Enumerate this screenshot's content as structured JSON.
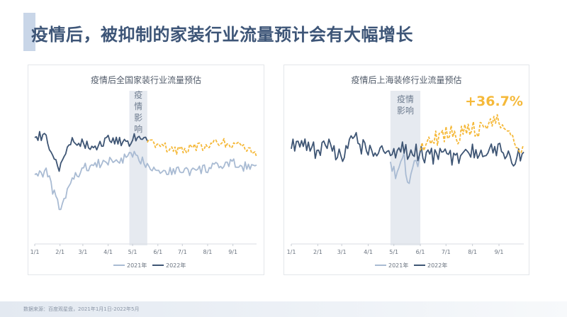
{
  "page_title": "疫情后，被抑制的家装行业流量预计会有大幅增长",
  "source_note": "数据来源：百度观星盘，2021年1月1日-2022年5月",
  "colors": {
    "series_2021": "#a9bbd3",
    "series_2022": "#3e5574",
    "forecast": "#f5b93a",
    "highlight": "#f5b93a",
    "band": "#d8dee8",
    "band_text": "#6e7c8f"
  },
  "chart_data": [
    {
      "type": "line",
      "title": "疫情后全国家装行业流量预估",
      "x_ticks": [
        "1/1",
        "2/1",
        "3/1",
        "4/1",
        "5/1",
        "6/1",
        "7/1",
        "8/1",
        "9/1"
      ],
      "band": {
        "label": "疫情影响",
        "from": "4/27",
        "to": "5/19"
      },
      "legend": [
        "2021年",
        "2022年"
      ],
      "legend_position": "bottom",
      "grid": false,
      "series": [
        {
          "name": "2021年",
          "x": [
            "1/1",
            "1/15",
            "2/1",
            "2/15",
            "3/1",
            "3/15",
            "4/1",
            "4/15",
            "5/1",
            "5/15",
            "6/1",
            "6/15",
            "7/1",
            "7/15",
            "8/1",
            "8/15",
            "9/1",
            "9/15",
            "9/30"
          ],
          "y": [
            42,
            44,
            20,
            38,
            46,
            48,
            50,
            51,
            54,
            50,
            45,
            44,
            45,
            44,
            46,
            47,
            49,
            47,
            48
          ]
        },
        {
          "name": "2022年",
          "x": [
            "1/1",
            "1/15",
            "1/22",
            "2/1",
            "2/15",
            "3/1",
            "3/15",
            "4/1",
            "4/15",
            "4/27",
            "5/1",
            "5/10",
            "5/19"
          ],
          "y": [
            65,
            67,
            52,
            45,
            64,
            62,
            58,
            64,
            63,
            60,
            64,
            67,
            63
          ]
        },
        {
          "name": "预估",
          "forecast": true,
          "x": [
            "5/19",
            "6/1",
            "6/15",
            "7/1",
            "7/15",
            "8/1",
            "8/15",
            "9/1",
            "9/15",
            "9/30"
          ],
          "y": [
            62,
            60,
            58,
            57,
            60,
            59,
            62,
            61,
            58,
            53
          ]
        }
      ]
    },
    {
      "type": "line",
      "title": "疫情后上海装修行业流量预估",
      "x_ticks": [
        "1/1",
        "2/1",
        "3/1",
        "4/1",
        "5/1",
        "6/1",
        "7/1",
        "8/1",
        "9/1"
      ],
      "band": {
        "label": "疫情影响",
        "from": "4/27",
        "to": "6/1"
      },
      "annotation": "+36.7%",
      "legend": [
        "2021年",
        "2022年"
      ],
      "legend_position": "bottom",
      "grid": false,
      "series": [
        {
          "name": "2021年",
          "x": [
            "4/27",
            "5/5",
            "5/12",
            "5/19",
            "5/26",
            "6/1"
          ],
          "y": [
            50,
            40,
            55,
            35,
            48,
            52
          ]
        },
        {
          "name": "2022年",
          "x": [
            "1/1",
            "1/15",
            "2/1",
            "2/15",
            "3/1",
            "3/15",
            "4/1",
            "4/15",
            "4/27",
            "5/1",
            "5/15",
            "6/1",
            "6/15",
            "7/1",
            "7/15",
            "8/1",
            "8/15",
            "9/1",
            "9/15",
            "9/30"
          ],
          "y": [
            58,
            62,
            55,
            60,
            52,
            64,
            56,
            60,
            50,
            58,
            57,
            55,
            53,
            54,
            52,
            56,
            55,
            57,
            51,
            56
          ]
        },
        {
          "name": "预估",
          "forecast": true,
          "x": [
            "6/1",
            "6/15",
            "7/1",
            "7/15",
            "8/1",
            "8/15",
            "9/1",
            "9/15",
            "9/30"
          ],
          "y": [
            57,
            63,
            68,
            66,
            71,
            68,
            76,
            70,
            56
          ]
        }
      ]
    }
  ]
}
